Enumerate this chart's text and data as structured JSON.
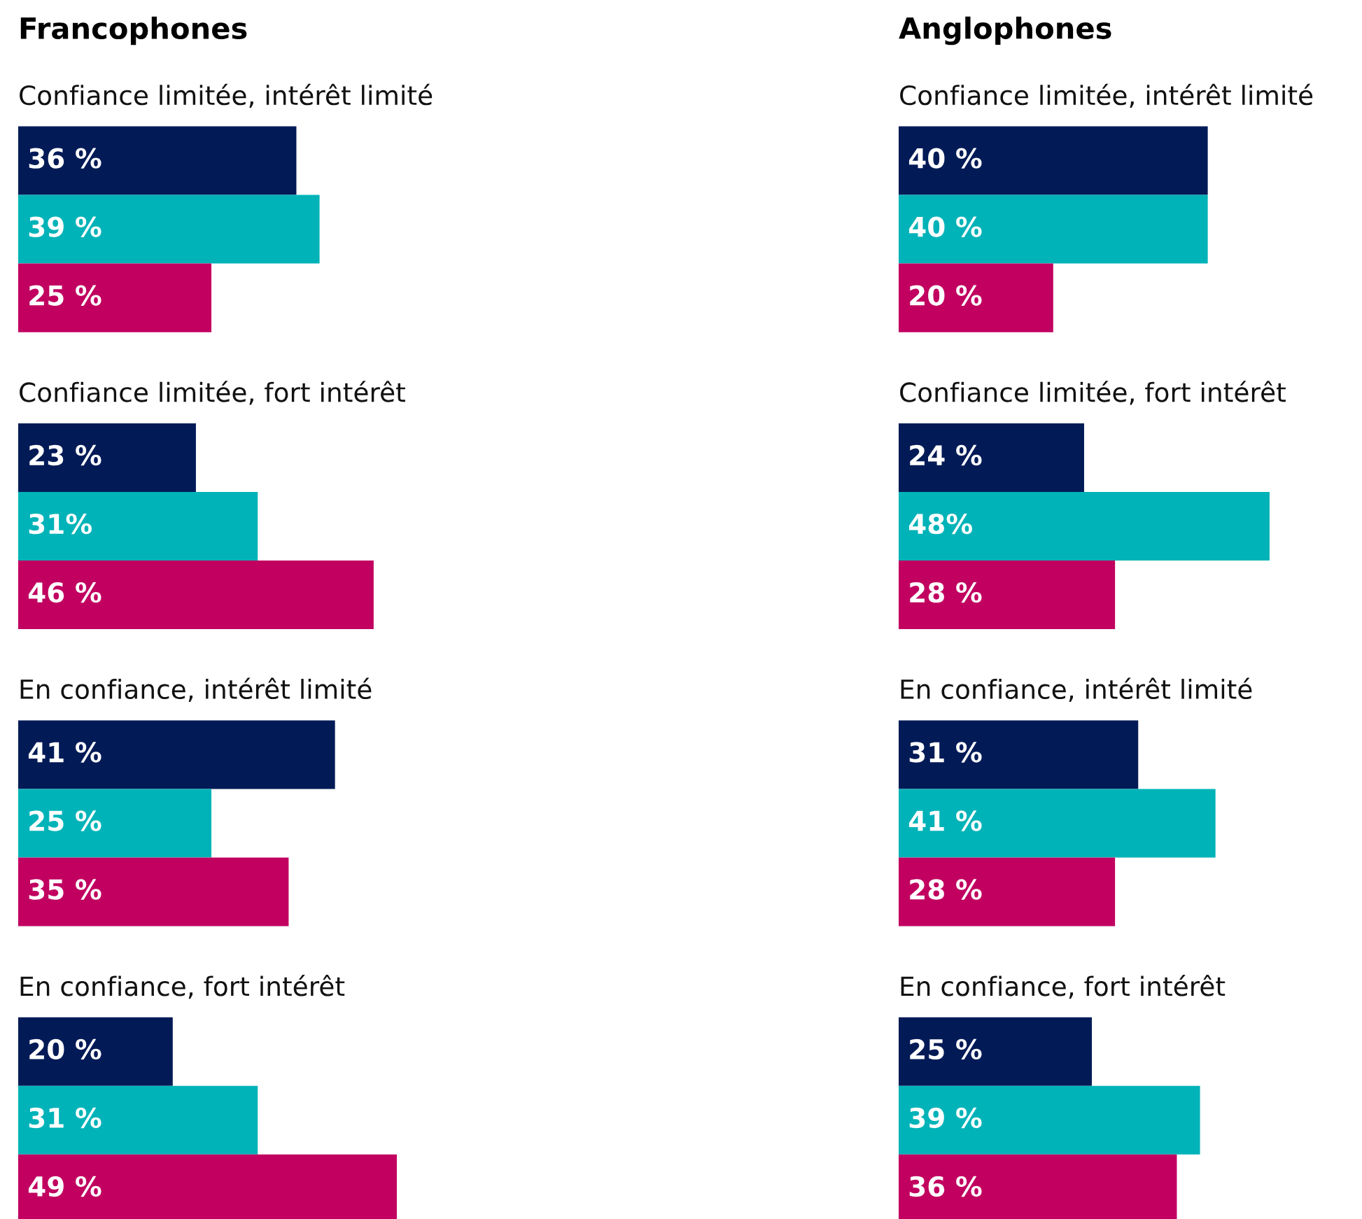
{
  "chart_data": [
    {
      "type": "bar",
      "orientation": "horizontal",
      "title": "Francophones",
      "categories": [
        "Confiance limitée, intérêt limité",
        "Confiance limitée, fort intérêt",
        "En confiance, intérêt limité",
        "En confiance, fort intérêt"
      ],
      "series": [
        {
          "color": "#021b57",
          "values": [
            36,
            23,
            41,
            20
          ],
          "value_labels": [
            "36 %",
            "23 %",
            "41 %",
            "20 %"
          ]
        },
        {
          "color": "#00b3b8",
          "values": [
            39,
            31,
            25,
            31
          ],
          "value_labels": [
            "39 %",
            "31%",
            "25 %",
            "31 %"
          ]
        },
        {
          "color": "#c10060",
          "values": [
            25,
            46,
            35,
            49
          ],
          "value_labels": [
            "25 %",
            "46 %",
            "35 %",
            "49 %"
          ]
        }
      ]
    },
    {
      "type": "bar",
      "orientation": "horizontal",
      "title": "Anglophones",
      "categories": [
        "Confiance limitée, intérêt limité",
        "Confiance limitée, fort intérêt",
        "En confiance, intérêt limité",
        "En confiance, fort intérêt"
      ],
      "series": [
        {
          "color": "#021b57",
          "values": [
            40,
            24,
            31,
            25
          ],
          "value_labels": [
            "40 %",
            "24 %",
            "31 %",
            "25 %"
          ]
        },
        {
          "color": "#00b3b8",
          "values": [
            40,
            48,
            41,
            39
          ],
          "value_labels": [
            "40 %",
            "48%",
            "41 %",
            "39 %"
          ]
        },
        {
          "color": "#c10060",
          "values": [
            20,
            28,
            28,
            36
          ],
          "value_labels": [
            "20 %",
            "28 %",
            "28 %",
            "36 %"
          ]
        }
      ]
    }
  ]
}
